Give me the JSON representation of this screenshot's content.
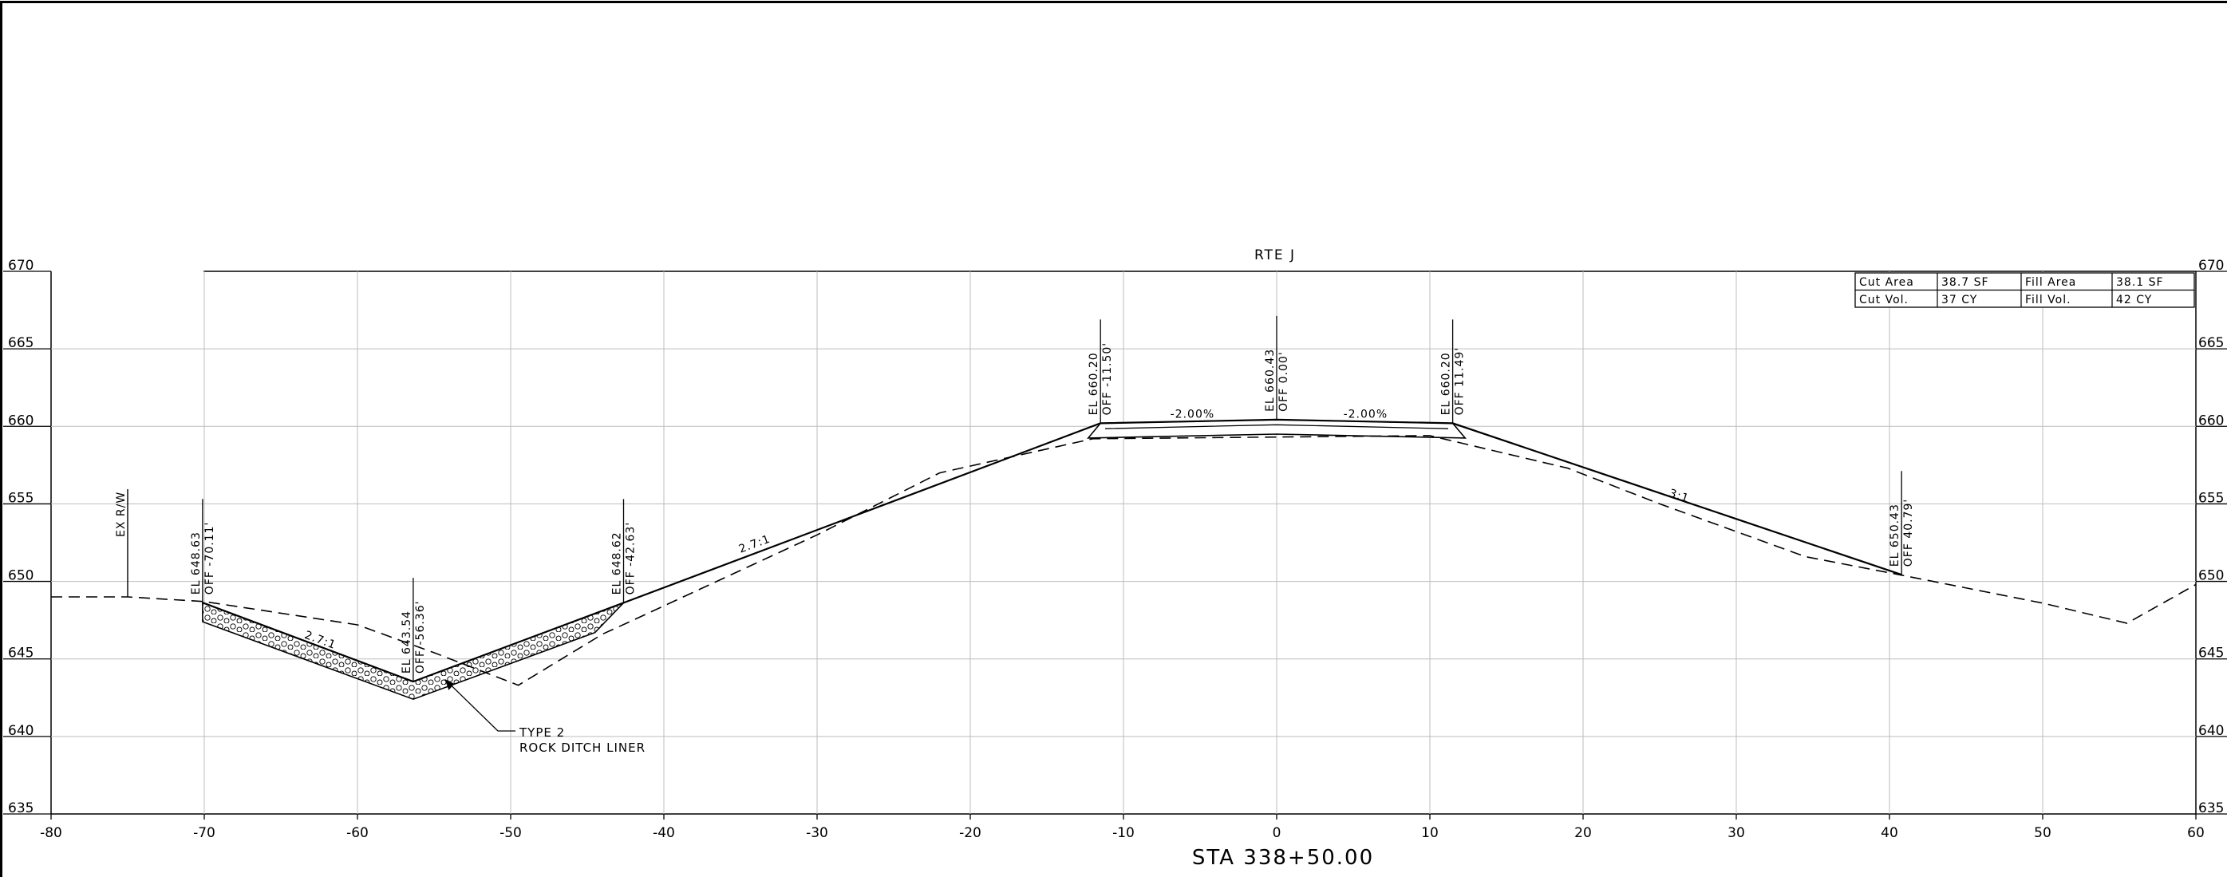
{
  "section": {
    "title": "RTE J",
    "station": "STA 338+50.00"
  },
  "chart_data": {
    "type": "cross-section",
    "xlim": [
      -80,
      60
    ],
    "ylim": [
      635,
      670
    ],
    "x_ticks": [
      "-80",
      "-70",
      "-60",
      "-50",
      "-40",
      "-30",
      "-20",
      "-10",
      "0",
      "10",
      "20",
      "30",
      "40",
      "50",
      "60"
    ],
    "y_ticks": [
      "670",
      "665",
      "660",
      "655",
      "650",
      "645",
      "640",
      "635"
    ],
    "grid": true,
    "existing_ground": [
      [
        -80,
        649.0
      ],
      [
        -75,
        649.0
      ],
      [
        -70,
        648.7
      ],
      [
        -60,
        647.2
      ],
      [
        -55,
        645.4
      ],
      [
        -49.5,
        643.3
      ],
      [
        -44,
        646.6
      ],
      [
        -42,
        647.5
      ],
      [
        -30,
        653.0
      ],
      [
        -22,
        657.0
      ],
      [
        -12,
        659.2
      ],
      [
        10,
        659.4
      ],
      [
        19,
        657.3
      ],
      [
        25,
        655.0
      ],
      [
        34.5,
        651.6
      ],
      [
        40.8,
        650.4
      ],
      [
        50,
        648.6
      ],
      [
        55.5,
        647.3
      ],
      [
        60,
        649.8
      ]
    ],
    "proposed_surface": [
      [
        -70.11,
        648.63
      ],
      [
        -56.36,
        643.54
      ],
      [
        -42.63,
        648.62
      ],
      [
        -11.5,
        660.2
      ],
      [
        0,
        660.43
      ],
      [
        11.49,
        660.2
      ],
      [
        40.79,
        650.43
      ]
    ],
    "liner_top": [
      [
        -70.11,
        648.63
      ],
      [
        -56.36,
        643.54
      ],
      [
        -42.63,
        648.62
      ]
    ],
    "liner_bottom": [
      [
        -70.11,
        647.4
      ],
      [
        -56.36,
        642.4
      ],
      [
        -44.5,
        646.7
      ]
    ],
    "pavement_bottom": [
      [
        -12.3,
        659.25
      ],
      [
        0,
        659.5
      ],
      [
        12.3,
        659.25
      ]
    ],
    "callouts": [
      {
        "el": "EL 648.63",
        "off": "OFF -70.11'",
        "x": -70.11,
        "y": 648.63
      },
      {
        "el": "EL 643.54",
        "off": "OFF -56.36'",
        "x": -56.36,
        "y": 643.54
      },
      {
        "el": "EL 648.62",
        "off": "OFF -42.63'",
        "x": -42.63,
        "y": 648.62
      },
      {
        "el": "EL 660.20",
        "off": "OFF -11.50'",
        "x": -11.5,
        "y": 660.2
      },
      {
        "el": "EL 660.43",
        "off": "OFF 0.00'",
        "x": 0,
        "y": 660.43
      },
      {
        "el": "EL 660.20",
        "off": "OFF 11.49'",
        "x": 11.49,
        "y": 660.2
      },
      {
        "el": "EL 650.43",
        "off": "OFF 40.79'",
        "x": 40.79,
        "y": 650.43
      }
    ],
    "slope_labels": [
      {
        "text": "2.7:1",
        "x": -62.5,
        "y": 646.0,
        "angle": 20
      },
      {
        "text": "2.7:1",
        "x": -34,
        "y": 652.2,
        "angle": -20
      },
      {
        "text": "3:1",
        "x": 26.2,
        "y": 655.3,
        "angle": 18
      },
      {
        "text": "-2.00%",
        "x": -5.5,
        "y": 660.55,
        "angle": 0
      },
      {
        "text": "-2.00%",
        "x": 5.8,
        "y": 660.55,
        "angle": 0
      }
    ],
    "right_of_way": {
      "label": "EX R/W",
      "x": -75,
      "y": 649.0
    }
  },
  "liner_note": {
    "line1": "TYPE 2",
    "line2": "ROCK DITCH LINER"
  },
  "quantities": [
    {
      "label": "Cut Area",
      "value": "38.7 SF",
      "label2": "Fill Area",
      "value2": "38.1 SF"
    },
    {
      "label": "Cut Vol.",
      "value": "37 CY",
      "label2": "Fill Vol.",
      "value2": "42 CY"
    }
  ]
}
